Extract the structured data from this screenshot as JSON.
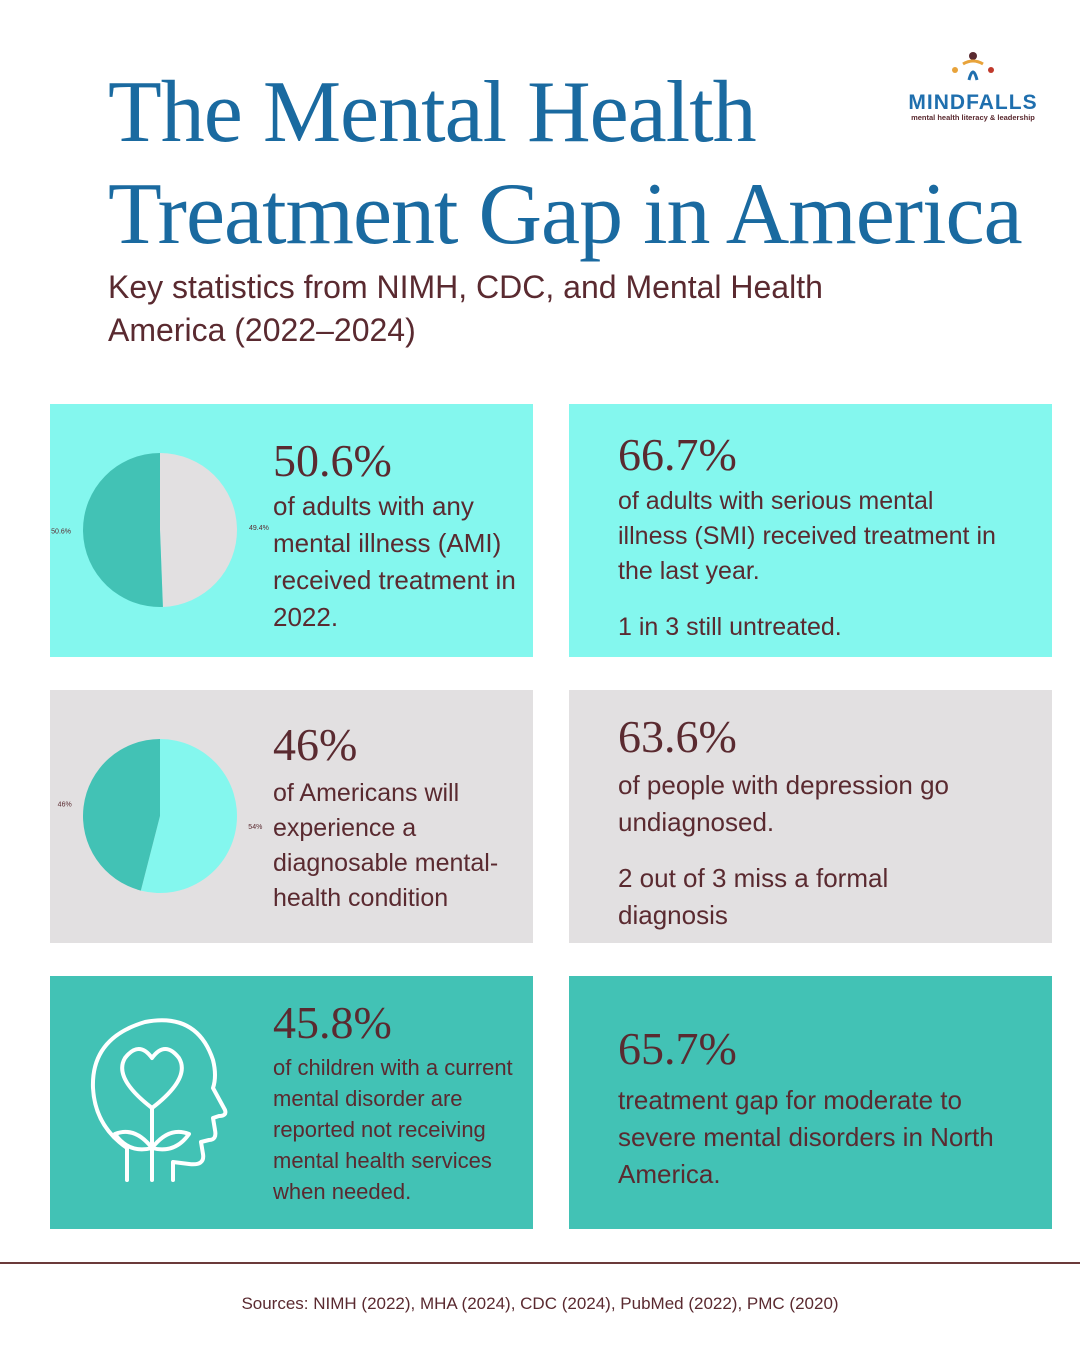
{
  "header": {
    "title_lines": [
      "The Mental Health",
      "Treatment Gap in America"
    ],
    "subtitle": "Key statistics from NIMH, CDC, and Mental Health America (2022–2024)",
    "logo": {
      "name": "MINDFALLS",
      "tagline": "mental health literacy & leadership"
    }
  },
  "cards": [
    {
      "stat": "50.6%",
      "text": "of adults with any mental illness (AMI) received treatment in 2022.",
      "pie": {
        "values": [
          49.4,
          50.6
        ],
        "value_labels": [
          "49.4%",
          "50.6%"
        ],
        "colors": [
          "#e2e0e1",
          "#42c2b5"
        ]
      }
    },
    {
      "stat": "66.7%",
      "text": "of adults with serious mental illness (SMI) received treatment in the last year.",
      "note": "1 in 3 still untreated."
    },
    {
      "stat": "46%",
      "text": "of Americans will experience a diagnosable mental-health condition",
      "pie": {
        "values": [
          54,
          46
        ],
        "value_labels": [
          "54%",
          "46%"
        ],
        "colors": [
          "#84f7ee",
          "#42c2b5"
        ]
      }
    },
    {
      "stat": "63.6%",
      "text": "of people with depression go undiagnosed.",
      "note": "2 out of 3 miss a formal diagnosis"
    },
    {
      "stat": "45.8%",
      "text": "of children with a current mental disorder are reported not receiving mental health services when needed."
    },
    {
      "stat": "65.7%",
      "text": "treatment gap for moderate to severe mental disorders in North America."
    }
  ],
  "footer": {
    "sources": "Sources: NIMH (2022), MHA (2024), CDC (2024), PubMed (2022), PMC (2020)"
  }
}
